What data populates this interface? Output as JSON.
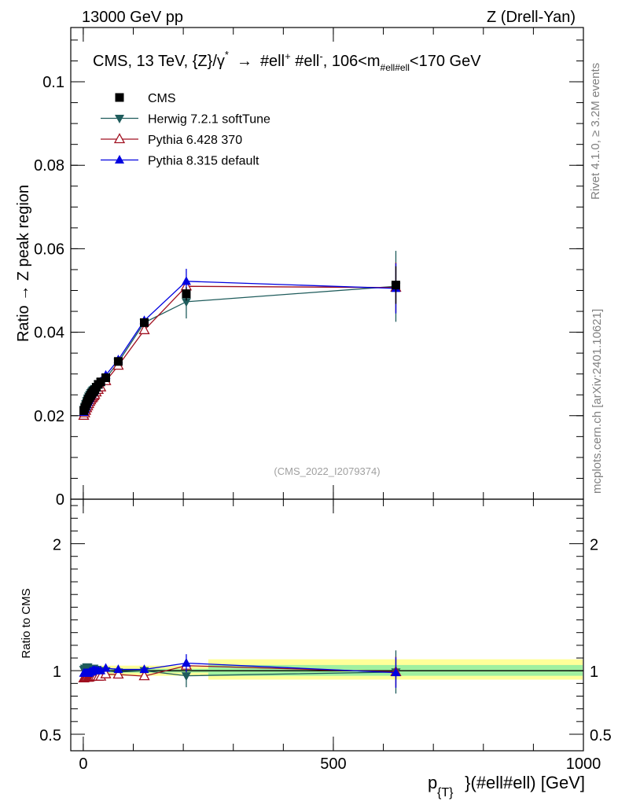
{
  "header": {
    "left": "13000 GeV pp",
    "right": "Z (Drell-Yan)"
  },
  "side_labels": {
    "rivet": "Rivet 4.1.0, ≥ 3.2M events",
    "mcplots": "mcplots.cern.ch [arXiv:2401.10621]"
  },
  "chart_data": [
    {
      "type": "scatter",
      "panel": "main",
      "title": "CMS, 13 TeV, {Z}/γ*  →  #ell⁺ #ell⁻,  106<m#ell#ell<170 GeV",
      "title_parts": {
        "a": "CMS, 13 TeV, {Z}/γ",
        "a_sup": "*",
        "arrow": "→",
        "b": "#ell",
        "b_sup": "+",
        "c": " #ell",
        "c_sup": "-",
        "d": ",  106<m",
        "d_sub": "#ell#ell",
        "e": "<170 GeV"
      },
      "ylabel": "Ratio → Z peak region",
      "ylim": [
        0,
        0.113
      ],
      "xlim": [
        -25,
        1000
      ],
      "yticks": [
        {
          "v": 0,
          "label": "0"
        },
        {
          "v": 0.02,
          "label": "0.02"
        },
        {
          "v": 0.04,
          "label": "0.04"
        },
        {
          "v": 0.06,
          "label": "0.06"
        },
        {
          "v": 0.08,
          "label": "0.08"
        },
        {
          "v": 0.1,
          "label": "0.1"
        }
      ],
      "watermark": "(CMS_2022_I2079374)",
      "legend_position": "top-left",
      "x": [
        1,
        3,
        5,
        7,
        9,
        11,
        13,
        15,
        17,
        19,
        21,
        23,
        26,
        30,
        35,
        45,
        70,
        122,
        206,
        625
      ],
      "series": [
        {
          "name": "CMS",
          "marker": "square",
          "color": "#000000",
          "values": [
            0.0212,
            0.0218,
            0.0224,
            0.023,
            0.0236,
            0.0241,
            0.0245,
            0.0249,
            0.0253,
            0.0256,
            0.0259,
            0.0262,
            0.0268,
            0.0275,
            0.0281,
            0.0291,
            0.033,
            0.0423,
            0.0492,
            0.0513
          ],
          "err": [
            0.0003,
            0.0003,
            0.0003,
            0.0003,
            0.0003,
            0.0003,
            0.0003,
            0.0003,
            0.0003,
            0.0003,
            0.0003,
            0.0003,
            0.0003,
            0.0003,
            0.0004,
            0.0004,
            0.0005,
            0.0008,
            0.0016,
            0.0045
          ]
        },
        {
          "name": "Herwig 7.2.1 softTune",
          "marker": "triangle-down",
          "color": "#1f5c5c",
          "values": [
            0.0215,
            0.0222,
            0.0229,
            0.0236,
            0.0242,
            0.0247,
            0.0251,
            0.0255,
            0.0258,
            0.0261,
            0.0263,
            0.0265,
            0.027,
            0.0276,
            0.0281,
            0.029,
            0.0328,
            0.0423,
            0.0473,
            0.051
          ],
          "err": [
            0.0004,
            0.0004,
            0.0004,
            0.0004,
            0.0004,
            0.0004,
            0.0004,
            0.0004,
            0.0004,
            0.0004,
            0.0004,
            0.0004,
            0.0004,
            0.0004,
            0.0005,
            0.0005,
            0.0006,
            0.001,
            0.004,
            0.0085
          ]
        },
        {
          "name": "Pythia 6.428 370",
          "marker": "triangle-open",
          "color": "#a01020",
          "values": [
            0.02,
            0.0206,
            0.0212,
            0.0218,
            0.0223,
            0.0228,
            0.0233,
            0.0237,
            0.0241,
            0.0244,
            0.0247,
            0.025,
            0.0256,
            0.0262,
            0.0268,
            0.0283,
            0.032,
            0.0405,
            0.051,
            0.0507
          ],
          "err": [
            0.0003,
            0.0003,
            0.0003,
            0.0003,
            0.0003,
            0.0003,
            0.0003,
            0.0003,
            0.0003,
            0.0003,
            0.0003,
            0.0003,
            0.0003,
            0.0003,
            0.0004,
            0.0004,
            0.0005,
            0.0008,
            0.002,
            0.006
          ]
        },
        {
          "name": "Pythia 8.315 default",
          "marker": "triangle-up",
          "color": "#0000e0",
          "values": [
            0.0208,
            0.0214,
            0.022,
            0.0226,
            0.0232,
            0.0237,
            0.0242,
            0.0247,
            0.0251,
            0.0255,
            0.0258,
            0.0261,
            0.0267,
            0.0275,
            0.0282,
            0.0297,
            0.0334,
            0.0428,
            0.0522,
            0.0505
          ],
          "err": [
            0.0003,
            0.0003,
            0.0003,
            0.0003,
            0.0003,
            0.0003,
            0.0003,
            0.0003,
            0.0003,
            0.0003,
            0.0003,
            0.0003,
            0.0003,
            0.0003,
            0.0004,
            0.0004,
            0.0005,
            0.0008,
            0.003,
            0.006
          ]
        }
      ]
    },
    {
      "type": "scatter",
      "panel": "ratio",
      "ylabel": "Ratio to CMS",
      "xlabel": "p_{T}(#ell#ell) [GeV]",
      "xlabel_parts": {
        "a": "p",
        "sub": "{T}",
        "b": "}(#ell#ell) [GeV]"
      },
      "ylim": [
        0.37,
        2.35
      ],
      "xlim": [
        -25,
        1000
      ],
      "yticks": [
        {
          "v": 0.5,
          "label": "0.5"
        },
        {
          "v": 1,
          "label": "1"
        },
        {
          "v": 2,
          "label": "2"
        }
      ],
      "xticks": [
        {
          "v": 0,
          "label": "0"
        },
        {
          "v": 500,
          "label": "500"
        },
        {
          "v": 1000,
          "label": "1000"
        }
      ],
      "bands": {
        "yellow": {
          "color": "#ffff99",
          "segments": [
            {
              "x0": 0,
              "x1": 250,
              "lo": 0.96,
              "hi": 1.04
            },
            {
              "x0": 250,
              "x1": 1000,
              "lo": 0.93,
              "hi": 1.09
            }
          ]
        },
        "green": {
          "color": "#a0f0a0",
          "segments": [
            {
              "x0": 0,
              "x1": 250,
              "lo": 0.985,
              "hi": 1.015
            },
            {
              "x0": 250,
              "x1": 1000,
              "lo": 0.96,
              "hi": 1.045
            }
          ]
        }
      },
      "x": [
        1,
        3,
        5,
        7,
        9,
        11,
        13,
        15,
        17,
        19,
        21,
        23,
        26,
        30,
        35,
        45,
        70,
        122,
        206,
        625
      ],
      "series": [
        {
          "name": "Herwig 7.2.1 softTune",
          "marker": "triangle-down",
          "color": "#1f5c5c",
          "values": [
            1.01,
            1.02,
            1.02,
            1.03,
            1.03,
            1.02,
            1.02,
            1.02,
            1.02,
            1.02,
            1.02,
            1.01,
            1.01,
            1.0,
            1.0,
            1.0,
            0.99,
            1.0,
            0.96,
            0.99
          ],
          "err": [
            0.02,
            0.02,
            0.02,
            0.02,
            0.02,
            0.02,
            0.02,
            0.02,
            0.02,
            0.02,
            0.02,
            0.02,
            0.02,
            0.02,
            0.02,
            0.02,
            0.02,
            0.03,
            0.09,
            0.17
          ]
        },
        {
          "name": "Pythia 6.428 370",
          "marker": "triangle-open",
          "color": "#a01020",
          "values": [
            0.94,
            0.945,
            0.946,
            0.948,
            0.945,
            0.946,
            0.951,
            0.952,
            0.953,
            0.953,
            0.954,
            0.954,
            0.955,
            0.953,
            0.954,
            0.972,
            0.97,
            0.957,
            1.04,
            0.99
          ],
          "err": [
            0.02,
            0.02,
            0.02,
            0.02,
            0.02,
            0.02,
            0.02,
            0.02,
            0.02,
            0.02,
            0.02,
            0.02,
            0.02,
            0.02,
            0.02,
            0.02,
            0.02,
            0.02,
            0.05,
            0.12
          ]
        },
        {
          "name": "Pythia 8.315 default",
          "marker": "triangle-up",
          "color": "#0000e0",
          "values": [
            0.98,
            0.98,
            0.98,
            0.98,
            0.98,
            0.98,
            0.99,
            0.99,
            0.99,
            1.0,
            1.0,
            1.0,
            1.0,
            1.0,
            1.0,
            1.02,
            1.01,
            1.01,
            1.06,
            0.985
          ],
          "err": [
            0.02,
            0.02,
            0.02,
            0.02,
            0.02,
            0.02,
            0.02,
            0.02,
            0.02,
            0.02,
            0.02,
            0.02,
            0.02,
            0.02,
            0.02,
            0.02,
            0.02,
            0.02,
            0.07,
            0.12
          ]
        }
      ]
    }
  ]
}
